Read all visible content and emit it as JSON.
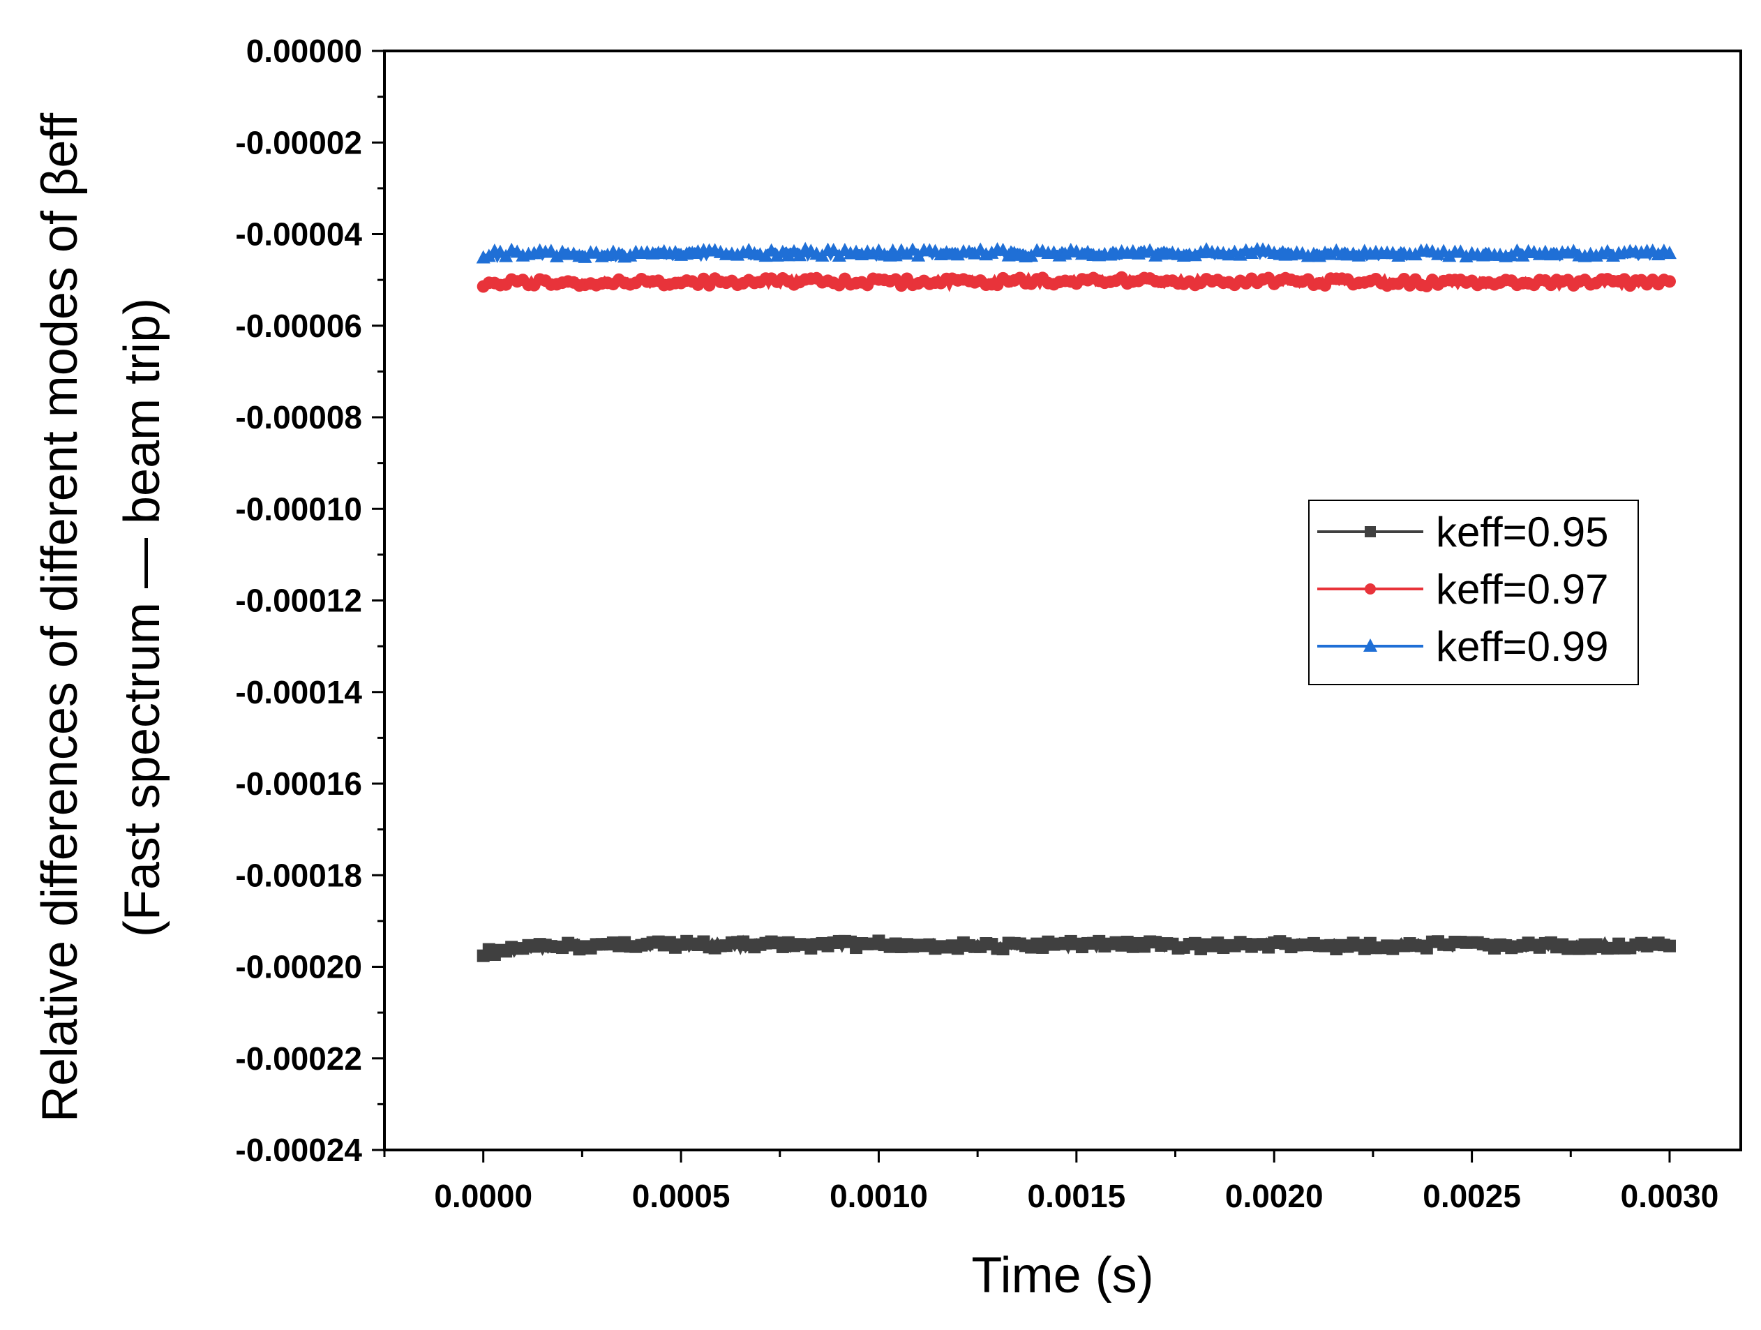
{
  "chart_data": {
    "type": "line",
    "xlabel": "Time (s)",
    "ylabel": "Relative differences of different modes of βeff",
    "ylabel2": "(Fast spectrum — beam trip)",
    "xlim": [
      -0.00025,
      0.00318
    ],
    "ylim": [
      -0.00024,
      0.0
    ],
    "xticks": [
      "0.0000",
      "0.0005",
      "0.0010",
      "0.0015",
      "0.0020",
      "0.0025",
      "0.0030"
    ],
    "xtick_values": [
      0.0,
      0.0005,
      0.001,
      0.0015,
      0.002,
      0.0025,
      0.003
    ],
    "yticks": [
      "0.00000",
      "-0.00002",
      "-0.00004",
      "-0.00006",
      "-0.00008",
      "-0.00010",
      "-0.00012",
      "-0.00014",
      "-0.00016",
      "-0.00018",
      "-0.00020",
      "-0.00022",
      "-0.00024"
    ],
    "ytick_values": [
      0.0,
      -2e-05,
      -4e-05,
      -6e-05,
      -8e-05,
      -0.0001,
      -0.00012,
      -0.00014,
      -0.00016,
      -0.00018,
      -0.0002,
      -0.00022,
      -0.00024
    ],
    "legend_position": "center-right",
    "series": [
      {
        "name": "keff=0.95",
        "color": "#404040",
        "marker": "square",
        "x": [
          0.0,
          0.0001,
          0.0002,
          0.0004,
          0.0006,
          0.0008,
          0.001,
          0.0012,
          0.0014,
          0.0016,
          0.0018,
          0.002,
          0.0022,
          0.0024,
          0.0026,
          0.0028,
          0.003
        ],
        "y": [
          -0.000197,
          -0.000196,
          -0.0001955,
          -0.000195,
          -0.0001952,
          -0.0001953,
          -0.000195,
          -0.0001955,
          -0.0001953,
          -0.000195,
          -0.0001955,
          -0.0001952,
          -0.0001955,
          -0.0001952,
          -0.0001955,
          -0.0001953,
          -0.0001955
        ]
      },
      {
        "name": "keff=0.97",
        "color": "#e8333a",
        "marker": "circle",
        "x": [
          0.0,
          0.0001,
          0.0002,
          0.0004,
          0.0006,
          0.0008,
          0.001,
          0.0012,
          0.0014,
          0.0016,
          0.0018,
          0.002,
          0.0022,
          0.0024,
          0.0026,
          0.0028,
          0.003
        ],
        "y": [
          -5.08e-05,
          -5.05e-05,
          -5.07e-05,
          -5.05e-05,
          -5.04e-05,
          -5.03e-05,
          -5.05e-05,
          -5.04e-05,
          -5.03e-05,
          -5.02e-05,
          -5.04e-05,
          -5.03e-05,
          -5.05e-05,
          -5.06e-05,
          -5.05e-05,
          -5.06e-05,
          -5.04e-05
        ]
      },
      {
        "name": "keff=0.99",
        "color": "#1f6fd6",
        "marker": "triangle",
        "x": [
          0.0,
          0.0001,
          0.0002,
          0.0004,
          0.0006,
          0.0008,
          0.001,
          0.0012,
          0.0014,
          0.0016,
          0.0018,
          0.002,
          0.0022,
          0.0024,
          0.0026,
          0.0028,
          0.003
        ],
        "y": [
          -4.45e-05,
          -4.42e-05,
          -4.45e-05,
          -4.43e-05,
          -4.42e-05,
          -4.41e-05,
          -4.42e-05,
          -4.41e-05,
          -4.42e-05,
          -4.41e-05,
          -4.42e-05,
          -4.41e-05,
          -4.43e-05,
          -4.44e-05,
          -4.42e-05,
          -4.44e-05,
          -4.43e-05
        ]
      }
    ]
  }
}
